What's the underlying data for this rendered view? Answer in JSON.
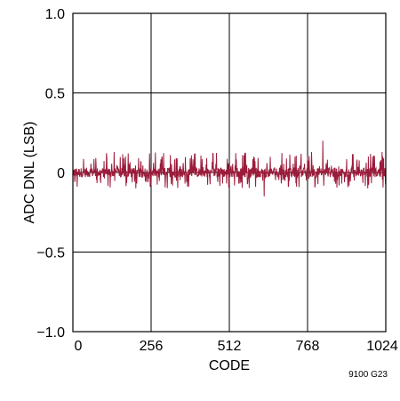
{
  "chart_data": {
    "type": "line",
    "title": "",
    "xlabel": "CODE",
    "ylabel": "ADC DNL (LSB)",
    "xlim": [
      0,
      1024
    ],
    "ylim": [
      -1.0,
      1.0
    ],
    "x_ticks": [
      0,
      256,
      512,
      768,
      1024
    ],
    "x_tick_labels": [
      "0",
      "256",
      "512",
      "768",
      "1024"
    ],
    "y_ticks": [
      -1.0,
      -0.5,
      0,
      0.5,
      1.0
    ],
    "y_tick_labels": [
      "−1.0",
      "−0.5",
      "0",
      "0.5",
      "1.0"
    ],
    "grid": true,
    "series": [
      {
        "color": "#9b1b3a",
        "x": [
          0,
          1023
        ],
        "envelope_typical": [
          -0.03,
          0.03
        ],
        "spike_range": [
          -0.1,
          0.13
        ],
        "max_value": 0.2,
        "max_at_code": 818,
        "min_value": -0.15,
        "min_at_code": 626
      }
    ]
  },
  "figure_id": "9100 G23"
}
